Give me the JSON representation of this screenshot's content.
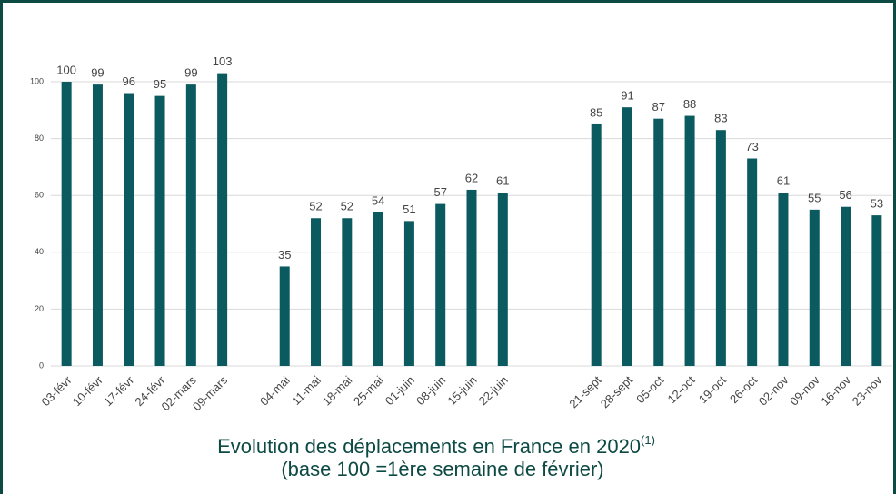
{
  "chart_data": {
    "type": "bar",
    "title": "Evolution des déplacements en France en 2020",
    "title_note": "(1)",
    "subtitle": "(base 100 =1ère semaine de février)",
    "categories": [
      "03-févr",
      "10-févr",
      "17-févr",
      "24-févr",
      "02-mars",
      "09-mars",
      null,
      "04-mai",
      "11-mai",
      "18-mai",
      "25-mai",
      "01-juin",
      "08-juin",
      "15-juin",
      "22-juin",
      null,
      null,
      "21-sept",
      "28-sept",
      "05-oct",
      "12-oct",
      "19-oct",
      "26-oct",
      "02-nov",
      "09-nov",
      "16-nov",
      "23-nov"
    ],
    "values": [
      100,
      99,
      96,
      95,
      99,
      103,
      null,
      35,
      52,
      52,
      54,
      51,
      57,
      62,
      61,
      null,
      null,
      85,
      91,
      87,
      88,
      83,
      73,
      61,
      55,
      56,
      53
    ],
    "color": "#0b5a60",
    "ylim": [
      0,
      100
    ],
    "yticks": [
      0,
      20,
      40,
      60,
      80,
      100
    ],
    "grid": true
  }
}
